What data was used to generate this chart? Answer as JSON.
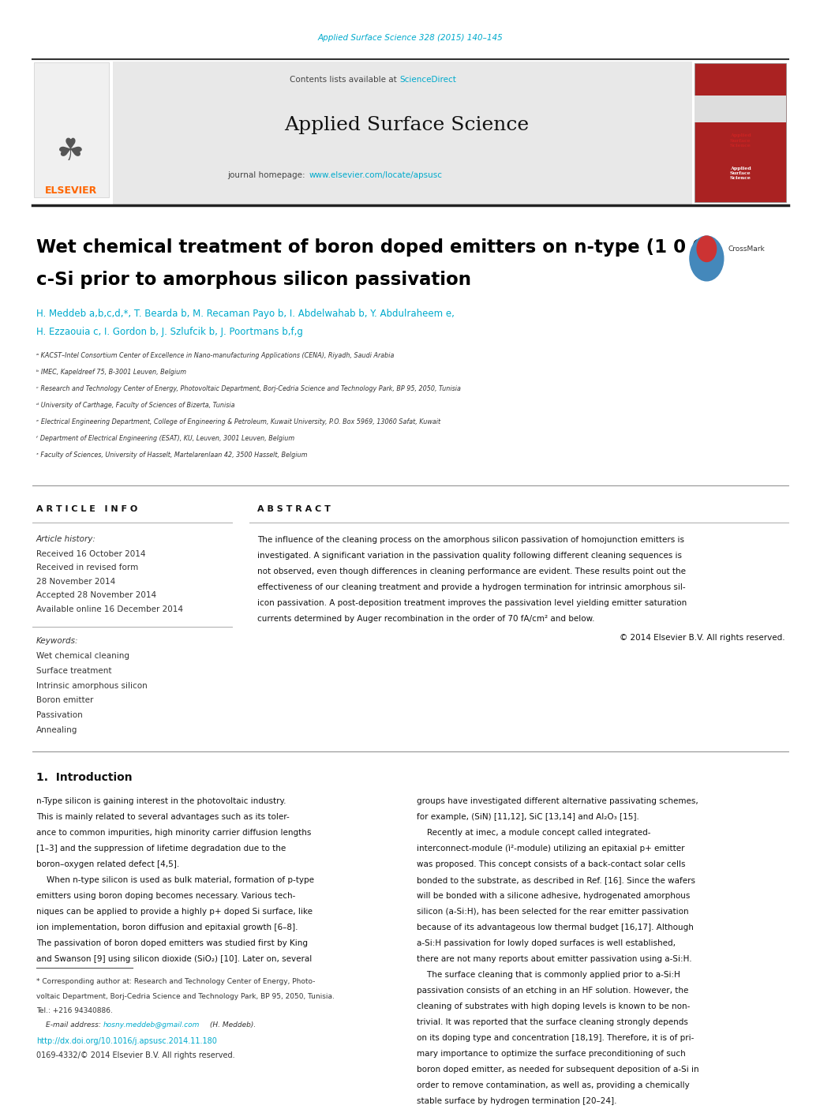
{
  "bg_color": "#ffffff",
  "page_width": 10.2,
  "page_height": 13.51,
  "journal_ref_text": "Applied Surface Science 328 (2015) 140–145",
  "journal_ref_color": "#00aacc",
  "sciencedirect_color": "#00aacc",
  "journal_name": "Applied Surface Science",
  "journal_homepage_url": "www.elsevier.com/locate/apsusc",
  "journal_homepage_color": "#00aacc",
  "header_bg": "#e8e8e8",
  "elsevier_color": "#ff6600",
  "article_title_line1": "Wet chemical treatment of boron doped emitters on n-type (1 0 0)",
  "article_title_line2": "c-Si prior to amorphous silicon passivation",
  "author_text1": "H. Meddeb a,b,c,d,*, T. Bearda b, M. Recaman Payo b, I. Abdelwahab b, Y. Abdulraheem e,",
  "author_text2": "H. Ezzaouia c, I. Gordon b, J. Szlufcik b, J. Poortmans b,f,g",
  "affil_a": "ᵃ KACST–Intel Consortium Center of Excellence in Nano-manufacturing Applications (CENA), Riyadh, Saudi Arabia",
  "affil_b": "ᵇ IMEC, Kapeldreef 75, B-3001 Leuven, Belgium",
  "affil_c": "ᶜ Research and Technology Center of Energy, Photovoltaic Department, Borj-Cedria Science and Technology Park, BP 95, 2050, Tunisia",
  "affil_d": "ᵈ University of Carthage, Faculty of Sciences of Bizerta, Tunisia",
  "affil_e": "ᵉ Electrical Engineering Department, College of Engineering & Petroleum, Kuwait University, P.O. Box 5969, 13060 Safat, Kuwait",
  "affil_f": "ᶠ Department of Electrical Engineering (ESAT), KU, Leuven, 3001 Leuven, Belgium",
  "affil_g": "ᶟ Faculty of Sciences, University of Hasselt, Martelarenlaan 42, 3500 Hasselt, Belgium",
  "article_info_title": "A R T I C L E   I N F O",
  "abstract_title": "A B S T R A C T",
  "article_history_label": "Article history:",
  "received_text": "Received 16 October 2014",
  "revised_text": "Received in revised form",
  "revised_date": "28 November 2014",
  "accepted_text": "Accepted 28 November 2014",
  "available_text": "Available online 16 December 2014",
  "keywords_label": "Keywords:",
  "keywords": [
    "Wet chemical cleaning",
    "Surface treatment",
    "Intrinsic amorphous silicon",
    "Boron emitter",
    "Passivation",
    "Annealing"
  ],
  "abstract_body": "The influence of the cleaning process on the amorphous silicon passivation of homojunction emitters is\ninvestigated. A significant variation in the passivation quality following different cleaning sequences is\nnot observed, even though differences in cleaning performance are evident. These results point out the\neffectiveness of our cleaning treatment and provide a hydrogen termination for intrinsic amorphous sil-\nicon passivation. A post-deposition treatment improves the passivation level yielding emitter saturation\ncurrents determined by Auger recombination in the order of 70 fA/cm² and below.",
  "copyright_text": "© 2014 Elsevier B.V. All rights reserved.",
  "intro_title": "1.  Introduction",
  "intro_col1": "n-Type silicon is gaining interest in the photovoltaic industry.\nThis is mainly related to several advantages such as its toler-\nance to common impurities, high minority carrier diffusion lengths\n[1–3] and the suppression of lifetime degradation due to the\nboron–oxygen related defect [4,5].\n    When n-type silicon is used as bulk material, formation of p-type\nemitters using boron doping becomes necessary. Various tech-\nniques can be applied to provide a highly p+ doped Si surface, like\nion implementation, boron diffusion and epitaxial growth [6–8].\nThe passivation of boron doped emitters was studied first by King\nand Swanson [9] using silicon dioxide (SiO₂) [10]. Later on, several",
  "intro_col2": "groups have investigated different alternative passivating schemes,\nfor example, (SiN) [11,12], SiC [13,14] and Al₂O₃ [15].\n    Recently at imec, a module concept called integrated-\ninterconnect-module (ì²-module) utilizing an epitaxial p+ emitter\nwas proposed. This concept consists of a back-contact solar cells\nbonded to the substrate, as described in Ref. [16]. Since the wafers\nwill be bonded with a silicone adhesive, hydrogenated amorphous\nsilicon (a-Si:H), has been selected for the rear emitter passivation\nbecause of its advantageous low thermal budget [16,17]. Although\na-Si:H passivation for lowly doped surfaces is well established,\nthere are not many reports about emitter passivation using a-Si:H.\n    The surface cleaning that is commonly applied prior to a-Si:H\npassivation consists of an etching in an HF solution. However, the\ncleaning of substrates with high doping levels is known to be non-\ntrivial. It was reported that the surface cleaning strongly depends\non its doping type and concentration [18,19]. Therefore, it is of pri-\nmary importance to optimize the surface preconditioning of such\nboron doped emitter, as needed for subsequent deposition of a-Si in\norder to remove contamination, as well as, providing a chemically\nstable surface by hydrogen termination [20–24].",
  "footnote_star": "* Corresponding author at: Research and Technology Center of Energy, Photo-\nvoltaic Department, Borj-Cedria Science and Technology Park, BP 95, 2050, Tunisia.\nTel.: +216 94340886.",
  "footnote_email_label": "E-mail address: ",
  "footnote_email": "hosny.meddeb@gmail.com",
  "footnote_email_suffix": " (H. Meddeb).",
  "doi_text": "http://dx.doi.org/10.1016/j.apsusc.2014.11.180",
  "issn_text": "0169-4332/© 2014 Elsevier B.V. All rights reserved.",
  "link_color": "#00aacc",
  "text_color": "#000000",
  "small_text_color": "#333333"
}
